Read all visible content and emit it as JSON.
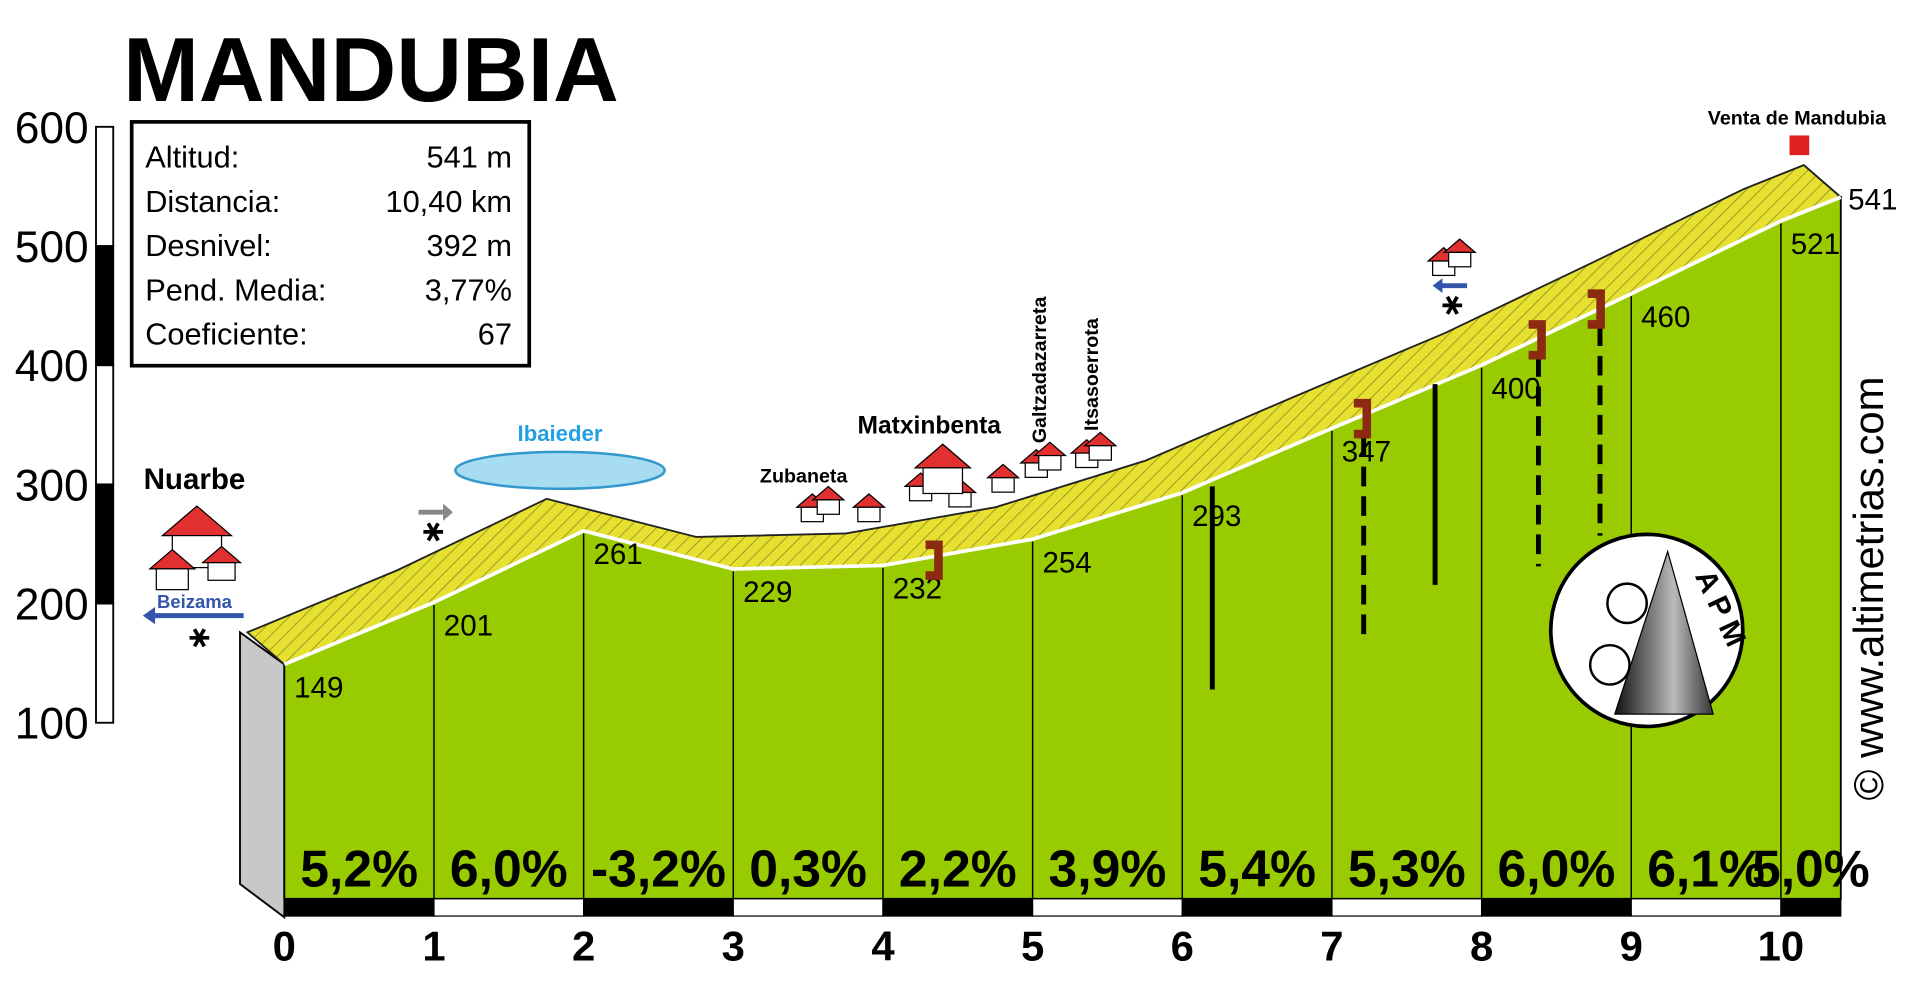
{
  "chart_data": {
    "type": "profile",
    "title": "MANDUBIA",
    "x": [
      0,
      1,
      2,
      3,
      4,
      5,
      6,
      7,
      8,
      9,
      10,
      10.4
    ],
    "values": [
      149,
      201,
      261,
      229,
      232,
      254,
      293,
      347,
      400,
      460,
      521,
      541
    ],
    "xlim": [
      0,
      10.4
    ],
    "ylim": [
      100,
      600
    ],
    "xticks": [
      0,
      1,
      2,
      3,
      4,
      5,
      6,
      7,
      8,
      9,
      10
    ],
    "yticks": [
      100,
      200,
      300,
      400,
      500,
      600
    ],
    "colors": {
      "fill": "#99cc00",
      "top": "#e6e030",
      "side": "#c8c8c8"
    },
    "gradients": {
      "values": [
        5.2,
        6.0,
        -3.2,
        0.3,
        2.2,
        3.9,
        5.4,
        5.3,
        6.0,
        6.1,
        5.0
      ],
      "value_labels": [
        "5,2%",
        "6,0%",
        "-3,2%",
        "0,3%",
        "2,2%",
        "3,9%",
        "5,4%",
        "5,3%",
        "6,0%",
        "6,1%",
        "5,0%"
      ]
    }
  },
  "info": {
    "rows": [
      [
        "Altitud:",
        "541 m"
      ],
      [
        "Distancia:",
        "10,40 km"
      ],
      [
        "Desnivel:",
        "392 m"
      ],
      [
        "Pend. Media:",
        "3,77%"
      ],
      [
        "Coeficiente:",
        "67"
      ]
    ]
  },
  "places": [
    "Nuarbe",
    "Beizama",
    "Ibaieder",
    "Zubaneta",
    "Matxinbenta",
    "Galtzadazarreta",
    "Itsasoerrota",
    "Venta de Mandubia"
  ],
  "logo": "APM",
  "watermark": "© www.altimetrias.com"
}
